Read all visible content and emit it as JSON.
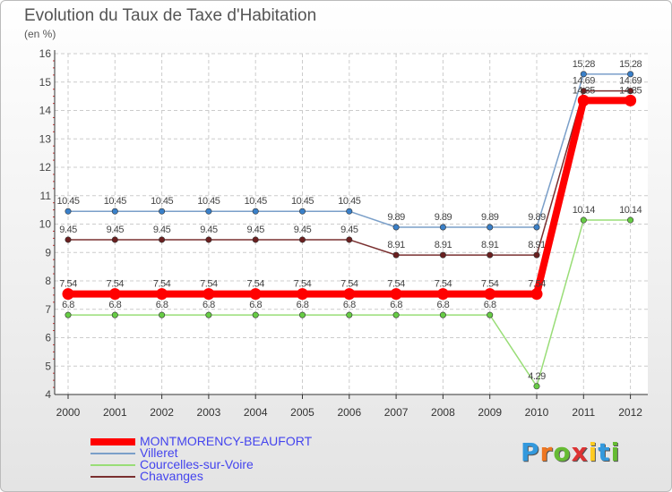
{
  "chart_data": {
    "type": "line",
    "title": "Evolution du Taux de Taxe d'Habitation",
    "subtitle": "(en %)",
    "xlabel": "",
    "ylabel": "",
    "categories": [
      "2000",
      "2001",
      "2002",
      "2003",
      "2004",
      "2005",
      "2006",
      "2007",
      "2008",
      "2009",
      "2010",
      "2011",
      "2012"
    ],
    "ylim": [
      4,
      16
    ],
    "yticks": [
      "4",
      "5",
      "6",
      "7",
      "8",
      "9",
      "10",
      "11",
      "12",
      "13",
      "14",
      "15",
      "16"
    ],
    "grid": true,
    "legend_position": "bottom-left",
    "series": [
      {
        "name": "Villeret",
        "color": "#7a9fc9",
        "marker": "#3a80c9",
        "values": [
          10.45,
          10.45,
          10.45,
          10.45,
          10.45,
          10.45,
          10.45,
          9.89,
          9.89,
          9.89,
          9.89,
          15.28,
          15.28
        ],
        "labels": [
          "10.45",
          "10.45",
          "10.45",
          "10.45",
          "10.45",
          "10.45",
          "10.45",
          "9.89",
          "9.89",
          "9.89",
          "9.89",
          "15.28",
          "15.28"
        ]
      },
      {
        "name": "Chavanges",
        "color": "#7a3030",
        "marker": "#6a2020",
        "values": [
          9.45,
          9.45,
          9.45,
          9.45,
          9.45,
          9.45,
          9.45,
          8.91,
          8.91,
          8.91,
          8.91,
          14.69,
          14.69
        ],
        "labels": [
          "9.45",
          "9.45",
          "9.45",
          "9.45",
          "9.45",
          "9.45",
          "9.45",
          "8.91",
          "8.91",
          "8.91",
          "8.91",
          "14.69",
          "14.69"
        ]
      },
      {
        "name": "Courcelles-sur-Voire",
        "color": "#99dd77",
        "marker": "#66cc44",
        "values": [
          6.8,
          6.8,
          6.8,
          6.8,
          6.8,
          6.8,
          6.8,
          6.8,
          6.8,
          6.8,
          4.29,
          10.14,
          10.14
        ],
        "labels": [
          "6.8",
          "6.8",
          "6.8",
          "6.8",
          "6.8",
          "6.8",
          "6.8",
          "6.8",
          "6.8",
          "6.8",
          "4.29",
          "10.14",
          "10.14"
        ]
      },
      {
        "name": "MONTMORENCY-BEAUFORT",
        "color": "#ff0000",
        "marker": "#ff0000",
        "values": [
          7.54,
          7.54,
          7.54,
          7.54,
          7.54,
          7.54,
          7.54,
          7.54,
          7.54,
          7.54,
          7.54,
          14.35,
          14.35
        ],
        "labels": [
          "7.54",
          "7.54",
          "7.54",
          "7.54",
          "7.54",
          "7.54",
          "7.54",
          "7.54",
          "7.54",
          "7.54",
          "7.54",
          "14.35",
          "14.35"
        ]
      }
    ]
  },
  "legend": [
    {
      "name": "MONTMORENCY-BEAUFORT",
      "color": "#ff0000",
      "text_color": "#4444ee"
    },
    {
      "name": "Villeret",
      "color": "#7a9fc9",
      "text_color": "#4444ee"
    },
    {
      "name": "Courcelles-sur-Voire",
      "color": "#99dd77",
      "text_color": "#4444ee"
    },
    {
      "name": "Chavanges",
      "color": "#7a3030",
      "text_color": "#4444ee"
    }
  ],
  "brand": {
    "letters": [
      "P",
      "r",
      "o",
      "x",
      "i",
      "t",
      "i"
    ],
    "colors": [
      "#3399dd",
      "#ee7722",
      "#66bb33",
      "#dd3333",
      "#ffcc22",
      "#3399dd",
      "#66bb33"
    ]
  }
}
